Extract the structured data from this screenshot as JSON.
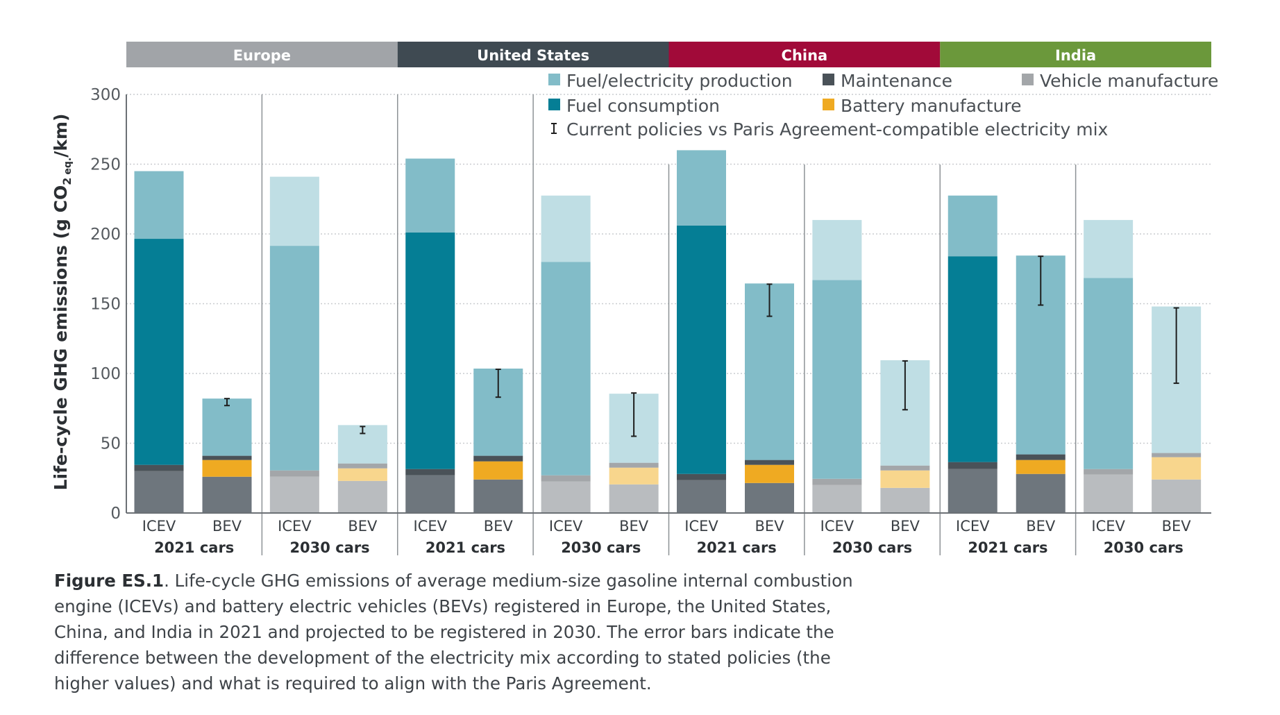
{
  "chart_data": {
    "type": "bar",
    "stacked": true,
    "ylabel": "Life-cycle GHG emissions (g CO2 eq./km)",
    "ylabel_parts": {
      "before": "Life-cycle GHG emissions (g CO",
      "sub2": "2",
      "subeq": "eq.",
      "after": "/km)"
    },
    "ylim": [
      0,
      300
    ],
    "yticks": [
      "0",
      "50",
      "100",
      "150",
      "200",
      "250",
      "300"
    ],
    "grid": "dotted horizontal",
    "regions": [
      {
        "name": "Europe",
        "color": "#a1a4a8"
      },
      {
        "name": "United States",
        "color": "#3f4a52"
      },
      {
        "name": "China",
        "color": "#a10a39"
      },
      {
        "name": "India",
        "color": "#6b983b"
      }
    ],
    "period_labels": [
      "2021 cars",
      "2030 cars"
    ],
    "vehicle_labels": [
      "ICEV",
      "BEV"
    ],
    "legend": [
      {
        "name": "Fuel/electricity production",
        "color": "#82bcc8"
      },
      {
        "name": "Maintenance",
        "color": "#4a5258"
      },
      {
        "name": "Vehicle manufacture",
        "color": "#a3a6a9"
      },
      {
        "name": "Fuel consumption",
        "color": "#057e95"
      },
      {
        "name": "Battery manufacture",
        "color": "#efaa22"
      },
      {
        "name": "Current policies vs Paris Agreement-compatible electricity mix",
        "marker": "I"
      }
    ],
    "series_order": [
      "Vehicle manufacture",
      "Battery manufacture",
      "Maintenance",
      "Fuel consumption",
      "Fuel/electricity production"
    ],
    "colors_2021": {
      "Vehicle manufacture": "#6e767d",
      "Battery manufacture": "#efaa22",
      "Maintenance": "#4a5258",
      "Fuel consumption": "#057e95",
      "Fuel/electricity production": "#82bcc8"
    },
    "colors_2030": {
      "Vehicle manufacture": "#b9bcbf",
      "Battery manufacture": "#f8d68d",
      "Maintenance": "#a3a6a9",
      "Fuel consumption": "#82bcc8",
      "Fuel/electricity production": "#bfdee4"
    },
    "bars": [
      {
        "region": "Europe",
        "period": "2021 cars",
        "vehicle": "ICEV",
        "values": {
          "Vehicle manufacture": 30,
          "Battery manufacture": 0,
          "Maintenance": 4.5,
          "Fuel consumption": 162,
          "Fuel/electricity production": 48.5
        }
      },
      {
        "region": "Europe",
        "period": "2021 cars",
        "vehicle": "BEV",
        "values": {
          "Vehicle manufacture": 26,
          "Battery manufacture": 12,
          "Maintenance": 3,
          "Fuel consumption": 0,
          "Fuel/electricity production": 41
        },
        "error": [
          77,
          82
        ]
      },
      {
        "region": "Europe",
        "period": "2030 cars",
        "vehicle": "ICEV",
        "values": {
          "Vehicle manufacture": 26,
          "Battery manufacture": 0,
          "Maintenance": 4.5,
          "Fuel consumption": 161,
          "Fuel/electricity production": 49.5
        }
      },
      {
        "region": "Europe",
        "period": "2030 cars",
        "vehicle": "BEV",
        "values": {
          "Vehicle manufacture": 23,
          "Battery manufacture": 9,
          "Maintenance": 3.5,
          "Fuel consumption": 0,
          "Fuel/electricity production": 27.5
        },
        "error": [
          57,
          62
        ]
      },
      {
        "region": "United States",
        "period": "2021 cars",
        "vehicle": "ICEV",
        "values": {
          "Vehicle manufacture": 27,
          "Battery manufacture": 0,
          "Maintenance": 4.5,
          "Fuel consumption": 169.5,
          "Fuel/electricity production": 53
        }
      },
      {
        "region": "United States",
        "period": "2021 cars",
        "vehicle": "BEV",
        "values": {
          "Vehicle manufacture": 24,
          "Battery manufacture": 13,
          "Maintenance": 4,
          "Fuel consumption": 0,
          "Fuel/electricity production": 62.5
        },
        "error": [
          83,
          103
        ]
      },
      {
        "region": "United States",
        "period": "2030 cars",
        "vehicle": "ICEV",
        "values": {
          "Vehicle manufacture": 22.5,
          "Battery manufacture": 0,
          "Maintenance": 4.5,
          "Fuel consumption": 153,
          "Fuel/electricity production": 47.5
        }
      },
      {
        "region": "United States",
        "period": "2030 cars",
        "vehicle": "BEV",
        "values": {
          "Vehicle manufacture": 20.5,
          "Battery manufacture": 12,
          "Maintenance": 3.5,
          "Fuel consumption": 0,
          "Fuel/electricity production": 49.5
        },
        "error": [
          55,
          86
        ]
      },
      {
        "region": "China",
        "period": "2021 cars",
        "vehicle": "ICEV",
        "values": {
          "Vehicle manufacture": 23.5,
          "Battery manufacture": 0,
          "Maintenance": 4.5,
          "Fuel consumption": 178,
          "Fuel/electricity production": 54
        }
      },
      {
        "region": "China",
        "period": "2021 cars",
        "vehicle": "BEV",
        "values": {
          "Vehicle manufacture": 21.5,
          "Battery manufacture": 13,
          "Maintenance": 3.5,
          "Fuel consumption": 0,
          "Fuel/electricity production": 126.5
        },
        "error": [
          141,
          164
        ]
      },
      {
        "region": "China",
        "period": "2030 cars",
        "vehicle": "ICEV",
        "values": {
          "Vehicle manufacture": 20,
          "Battery manufacture": 0,
          "Maintenance": 4.5,
          "Fuel consumption": 142.5,
          "Fuel/electricity production": 43
        }
      },
      {
        "region": "China",
        "period": "2030 cars",
        "vehicle": "BEV",
        "values": {
          "Vehicle manufacture": 18,
          "Battery manufacture": 12.5,
          "Maintenance": 3.5,
          "Fuel consumption": 0,
          "Fuel/electricity production": 75.5
        },
        "error": [
          74,
          109
        ]
      },
      {
        "region": "India",
        "period": "2021 cars",
        "vehicle": "ICEV",
        "values": {
          "Vehicle manufacture": 31.5,
          "Battery manufacture": 0,
          "Maintenance": 5,
          "Fuel consumption": 147.5,
          "Fuel/electricity production": 43.5
        }
      },
      {
        "region": "India",
        "period": "2021 cars",
        "vehicle": "BEV",
        "values": {
          "Vehicle manufacture": 28,
          "Battery manufacture": 10,
          "Maintenance": 4,
          "Fuel consumption": 0,
          "Fuel/electricity production": 142.5
        },
        "error": [
          149,
          184
        ]
      },
      {
        "region": "India",
        "period": "2030 cars",
        "vehicle": "ICEV",
        "values": {
          "Vehicle manufacture": 27.5,
          "Battery manufacture": 0,
          "Maintenance": 4,
          "Fuel consumption": 137,
          "Fuel/electricity production": 41.5
        }
      },
      {
        "region": "India",
        "period": "2030 cars",
        "vehicle": "BEV",
        "values": {
          "Vehicle manufacture": 24,
          "Battery manufacture": 16,
          "Maintenance": 3,
          "Fuel consumption": 0,
          "Fuel/electricity production": 105
        },
        "error": [
          93,
          147
        ]
      }
    ]
  },
  "caption": {
    "label": "Figure ES.1",
    "text": ". Life-cycle GHG emissions of average medium-size gasoline internal combustion engine (ICEVs) and battery electric vehicles (BEVs) registered in Europe, the United States, China, and India in 2021 and projected to be registered in 2030. The error bars indicate the difference between the development of the electricity mix according to stated policies (the higher values) and what is required to align with the Paris Agreement."
  }
}
